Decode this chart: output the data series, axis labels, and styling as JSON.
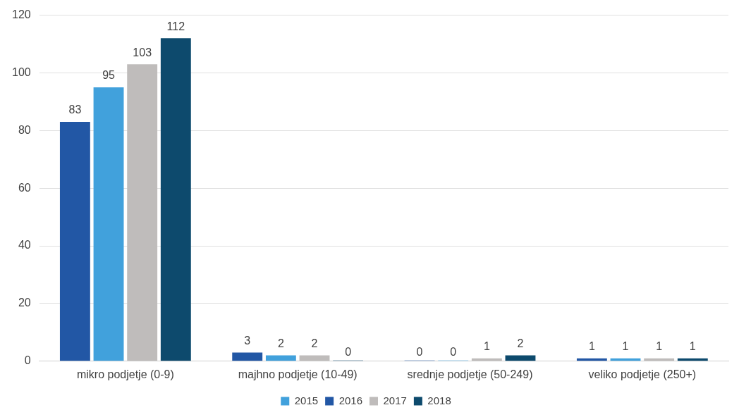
{
  "chart_data": {
    "type": "bar",
    "categories": [
      "mikro podjetje (0-9)",
      "majhno podjetje (10-49)",
      "srednje podjetje (50-249)",
      "veliko podjetje (250+)"
    ],
    "series": [
      {
        "name": "2016",
        "color": "#2257a5",
        "values": [
          83,
          3,
          0,
          1
        ]
      },
      {
        "name": "2015",
        "color": "#41a1dc",
        "values": [
          95,
          2,
          0,
          1
        ]
      },
      {
        "name": "2017",
        "color": "#bfbcbb",
        "values": [
          103,
          2,
          1,
          1
        ]
      },
      {
        "name": "2018",
        "color": "#0d4a6d",
        "values": [
          112,
          0,
          2,
          1
        ]
      }
    ],
    "ylim": [
      0,
      120
    ],
    "yticks": [
      0,
      20,
      40,
      60,
      80,
      100,
      120
    ],
    "grid": "y",
    "legend": "bottom",
    "data_labels": true
  }
}
